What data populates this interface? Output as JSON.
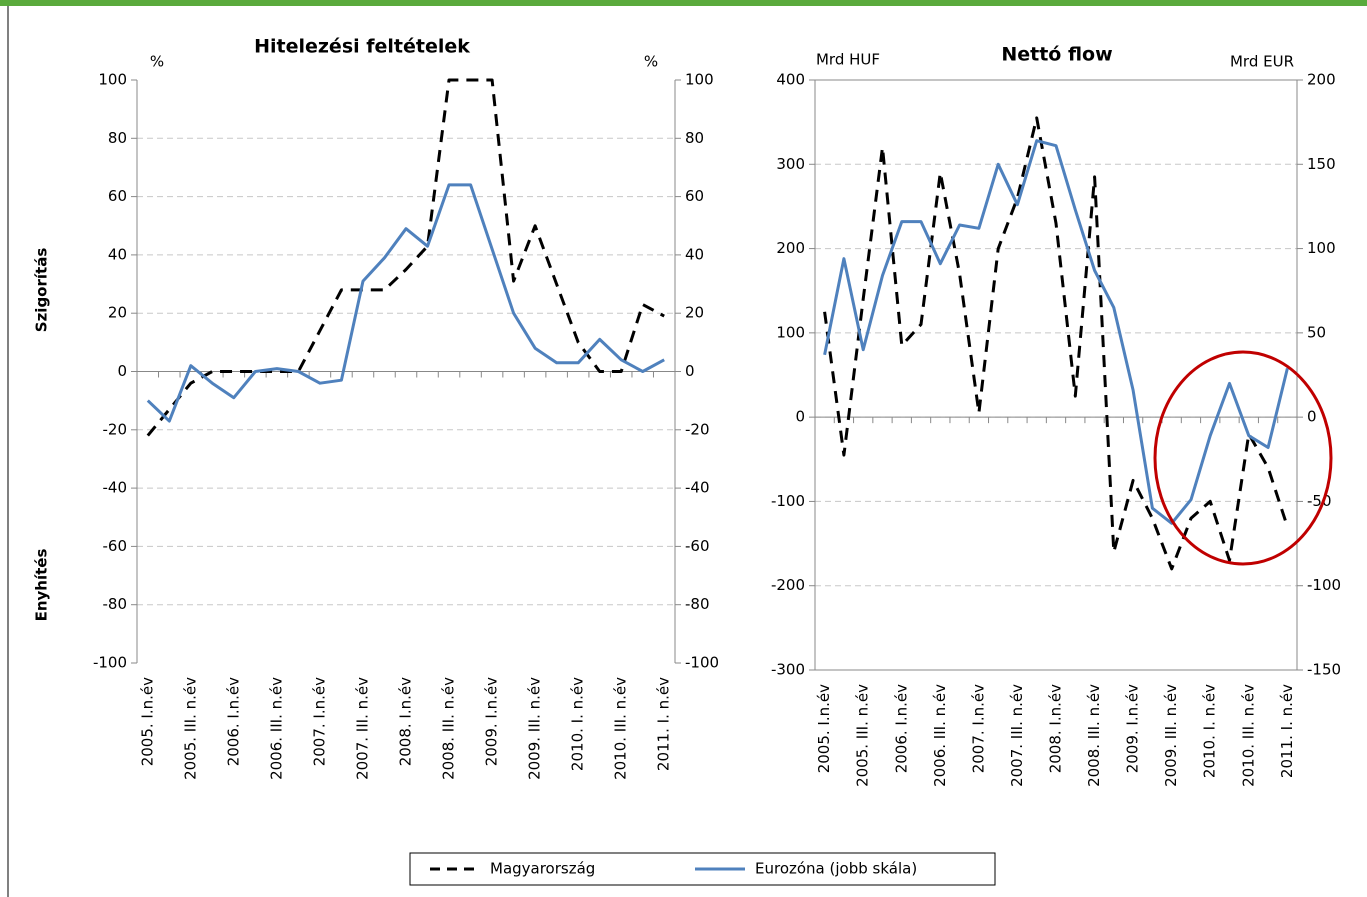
{
  "chart_data": [
    {
      "type": "line",
      "title": "Hitelezési feltételek",
      "ylabel": "%",
      "y2label": "%",
      "y_annotations": [
        "Szigorítás",
        "Enyhítés"
      ],
      "categories": [
        "2005. I.n.év",
        null,
        "2005. III. n.év",
        null,
        "2006. I.n.év",
        null,
        "2006. III. n.év",
        null,
        "2007. I.n.év",
        null,
        "2007. III. n.év",
        null,
        "2008. I.n.év",
        null,
        "2008. III. n.év",
        null,
        "2009. I.n.év",
        null,
        "2009. III. n.év",
        null,
        "2010. I. n.év",
        null,
        "2010. III. n.év",
        null,
        "2011. I. n.év"
      ],
      "ylim": [
        -100,
        100
      ],
      "yticks": [
        -100,
        -80,
        -60,
        -40,
        -20,
        0,
        20,
        40,
        60,
        80,
        100
      ],
      "y2lim": [
        -100,
        100
      ],
      "y2ticks": [
        -100,
        -80,
        -60,
        -40,
        -20,
        0,
        20,
        40,
        60,
        80,
        100
      ],
      "grid": true,
      "series": [
        {
          "name": "Magyarország",
          "color": "#000000",
          "line_style": "dashed",
          "values": [
            -22,
            -13,
            -4,
            0,
            0,
            0,
            0,
            0,
            14,
            28,
            28,
            28,
            35,
            43,
            100,
            100,
            100,
            31,
            50,
            30,
            10,
            0,
            0,
            23,
            19
          ]
        },
        {
          "name": "Eurozóna (jobb skála)",
          "color": "#4f81bd",
          "line_style": "solid",
          "axis": "y2",
          "values": [
            -10,
            -17,
            2,
            -4,
            -9,
            0,
            1,
            0,
            -4,
            -3,
            31,
            39,
            49,
            43,
            64,
            64,
            42,
            20,
            8,
            3,
            3,
            11,
            4,
            0,
            4
          ]
        }
      ]
    },
    {
      "type": "line",
      "title": "Nettó flow",
      "ylabel": "Mrd HUF",
      "y2label": "Mrd EUR",
      "categories": [
        "2005. I.n.év",
        null,
        "2005. III. n.év",
        null,
        "2006. I.n.év",
        null,
        "2006. III. n.év",
        null,
        "2007. I.n.év",
        null,
        "2007. III. n.év",
        null,
        "2008. I.n.év",
        null,
        "2008. III. n.év",
        null,
        "2009. I.n.év",
        null,
        "2009. III. n.év",
        null,
        "2010. I. n.év",
        null,
        "2010. III. n.év",
        null,
        "2011. I. n.év"
      ],
      "ylim": [
        -300,
        400
      ],
      "yticks": [
        -300,
        -200,
        -100,
        0,
        100,
        200,
        300,
        400
      ],
      "y2lim": [
        -150,
        200
      ],
      "y2ticks": [
        -150,
        -100,
        -50,
        0,
        50,
        100,
        150,
        200
      ],
      "grid": true,
      "series": [
        {
          "name": "Magyarország",
          "color": "#000000",
          "line_style": "dashed",
          "values": [
            125,
            -45,
            140,
            320,
            85,
            110,
            290,
            170,
            5,
            200,
            260,
            355,
            230,
            25,
            285,
            -160,
            -75,
            -120,
            -180,
            -120,
            -100,
            -170,
            -20,
            -60,
            -130
          ]
        },
        {
          "name": "Eurozóna (jobb skála)",
          "color": "#4f81bd",
          "line_style": "solid",
          "axis": "y2",
          "values": [
            37,
            94,
            40,
            84,
            116,
            116,
            91,
            114,
            112,
            150,
            126,
            164,
            161,
            123,
            87,
            65,
            16,
            -54,
            -63,
            -49,
            -11,
            20,
            -11,
            -18,
            29
          ]
        }
      ]
    }
  ]
}
